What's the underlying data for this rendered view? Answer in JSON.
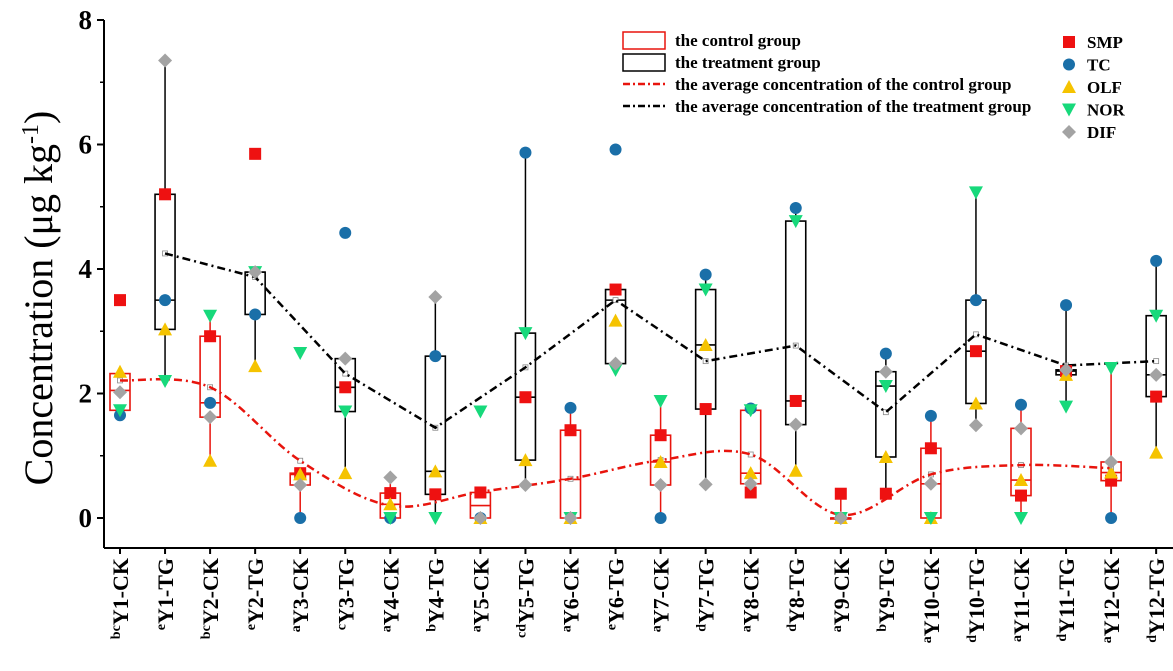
{
  "chart_data": {
    "type": "box",
    "ylabel_main": "Concentration (μg kg",
    "ylabel_sup": "-1",
    "ylabel_tail": ")",
    "ylim": [
      -0.3,
      8
    ],
    "yticks": [
      "0",
      "2",
      "4",
      "6",
      "8"
    ],
    "ytick_values": [
      0,
      2,
      4,
      6,
      8
    ],
    "categories": [
      {
        "sup": "bc",
        "label": "Y1-CK"
      },
      {
        "sup": "e",
        "label": "Y1-TG"
      },
      {
        "sup": "bc",
        "label": "Y2-CK"
      },
      {
        "sup": "e",
        "label": "Y2-TG"
      },
      {
        "sup": "a",
        "label": "Y3-CK"
      },
      {
        "sup": "c",
        "label": "Y3-TG"
      },
      {
        "sup": "a",
        "label": "Y4-CK"
      },
      {
        "sup": "b",
        "label": "Y4-TG"
      },
      {
        "sup": "a",
        "label": "Y5-CK"
      },
      {
        "sup": "cd",
        "label": "Y5-TG"
      },
      {
        "sup": "a",
        "label": "Y6-CK"
      },
      {
        "sup": "e",
        "label": "Y6-TG"
      },
      {
        "sup": "a",
        "label": "Y7-CK"
      },
      {
        "sup": "d",
        "label": "Y7-TG"
      },
      {
        "sup": "a",
        "label": "Y8-CK"
      },
      {
        "sup": "d",
        "label": "Y8-TG"
      },
      {
        "sup": "a",
        "label": "Y9-CK"
      },
      {
        "sup": "b",
        "label": "Y9-TG"
      },
      {
        "sup": "a",
        "label": "Y10-CK"
      },
      {
        "sup": "d",
        "label": "Y10-TG"
      },
      {
        "sup": "a",
        "label": "Y11-CK"
      },
      {
        "sup": "d",
        "label": "Y11-TG"
      },
      {
        "sup": "a",
        "label": "Y12-CK"
      },
      {
        "sup": "d",
        "label": "Y12-TG"
      }
    ],
    "boxes": [
      {
        "q1": 1.73,
        "q3": 2.32,
        "median": 2.05,
        "mean": 2.21,
        "wlow": 1.65,
        "whigh": 2.35
      },
      {
        "q1": 3.03,
        "q3": 5.2,
        "median": 3.5,
        "mean": 4.25,
        "wlow": 2.2,
        "whigh": 7.35
      },
      {
        "q1": 1.62,
        "q3": 2.92,
        "median": 1.85,
        "mean": 2.1,
        "wlow": 0.92,
        "whigh": 3.25
      },
      {
        "q1": 3.27,
        "q3": 3.95,
        "median": 3.95,
        "mean": 3.87,
        "wlow": 2.44,
        "whigh": 3.95
      },
      {
        "q1": 0.53,
        "q3": 0.72,
        "median": 0.7,
        "mean": 0.92,
        "wlow": 0.0,
        "whigh": 0.72
      },
      {
        "q1": 1.71,
        "q3": 2.56,
        "median": 2.1,
        "mean": 2.32,
        "wlow": 0.72,
        "whigh": 2.56
      },
      {
        "q1": 0.0,
        "q3": 0.4,
        "median": 0.22,
        "mean": 0.2,
        "wlow": 0.0,
        "whigh": 0.65
      },
      {
        "q1": 0.38,
        "q3": 2.6,
        "median": 0.75,
        "mean": 1.45,
        "wlow": 0.0,
        "whigh": 3.55
      },
      {
        "q1": 0.0,
        "q3": 0.41,
        "median": 0.2,
        "mean": 0.42,
        "wlow": 0.0,
        "whigh": 0.41
      },
      {
        "q1": 0.93,
        "q3": 2.97,
        "median": 1.94,
        "mean": 2.42,
        "wlow": 0.53,
        "whigh": 5.87
      },
      {
        "q1": 0.0,
        "q3": 1.41,
        "median": 0.62,
        "mean": 0.63,
        "wlow": 0.0,
        "whigh": 1.77
      },
      {
        "q1": 2.48,
        "q3": 3.67,
        "median": 3.5,
        "mean": 3.5,
        "wlow": 2.38,
        "whigh": 3.67
      },
      {
        "q1": 0.53,
        "q3": 1.33,
        "median": 0.9,
        "mean": 0.93,
        "wlow": 0.0,
        "whigh": 1.88
      },
      {
        "q1": 1.75,
        "q3": 3.67,
        "median": 2.78,
        "mean": 2.52,
        "wlow": 0.54,
        "whigh": 3.91
      },
      {
        "q1": 0.55,
        "q3": 1.73,
        "median": 0.72,
        "mean": 1.02,
        "wlow": 0.41,
        "whigh": 1.76
      },
      {
        "q1": 1.5,
        "q3": 4.77,
        "median": 1.88,
        "mean": 2.77,
        "wlow": 0.76,
        "whigh": 4.98
      },
      {
        "q1": 0.0,
        "q3": 0.0,
        "median": 0.0,
        "mean": 0.05,
        "wlow": 0.0,
        "whigh": 0.39
      },
      {
        "q1": 0.98,
        "q3": 2.35,
        "median": 2.12,
        "mean": 1.7,
        "wlow": 0.39,
        "whigh": 2.64
      },
      {
        "q1": 0.0,
        "q3": 1.12,
        "median": 0.55,
        "mean": 0.7,
        "wlow": 0.0,
        "whigh": 1.64
      },
      {
        "q1": 1.84,
        "q3": 3.5,
        "median": 2.68,
        "mean": 2.95,
        "wlow": 1.49,
        "whigh": 5.23
      },
      {
        "q1": 0.36,
        "q3": 1.44,
        "median": 0.61,
        "mean": 0.85,
        "wlow": 0.0,
        "whigh": 1.82
      },
      {
        "q1": 2.3,
        "q3": 2.38,
        "median": 2.36,
        "mean": 2.45,
        "wlow": 1.79,
        "whigh": 3.42
      },
      {
        "q1": 0.6,
        "q3": 0.9,
        "median": 0.73,
        "mean": 0.8,
        "wlow": 0.0,
        "whigh": 2.41
      },
      {
        "q1": 1.95,
        "q3": 3.25,
        "median": 2.3,
        "mean": 2.52,
        "wlow": 1.05,
        "whigh": 4.13
      }
    ],
    "box_group_colors": {
      "CK": "#e8140d",
      "TG": "#000000"
    },
    "points": [
      {
        "SMP": 3.5,
        "TC": 1.65,
        "OLF": 2.35,
        "NOR": 1.73,
        "DIF": 2.02
      },
      {
        "SMP": 5.2,
        "TC": 3.5,
        "OLF": 3.03,
        "NOR": 2.2,
        "DIF": 7.35
      },
      {
        "SMP": 2.92,
        "TC": 1.85,
        "OLF": 0.92,
        "NOR": 3.25,
        "DIF": 1.62
      },
      {
        "SMP": 5.85,
        "TC": 3.27,
        "OLF": 2.44,
        "NOR": 3.95,
        "DIF": 3.95
      },
      {
        "SMP": 0.72,
        "TC": 0.0,
        "OLF": 0.7,
        "NOR": 2.65,
        "DIF": 0.53
      },
      {
        "SMP": 2.1,
        "TC": 4.58,
        "OLF": 0.72,
        "NOR": 1.71,
        "DIF": 2.56
      },
      {
        "SMP": 0.4,
        "TC": 0.0,
        "OLF": 0.22,
        "NOR": 0.0,
        "DIF": 0.65
      },
      {
        "SMP": 0.38,
        "TC": 2.6,
        "OLF": 0.75,
        "NOR": 0.0,
        "DIF": 3.55
      },
      {
        "SMP": 0.41,
        "TC": 0.0,
        "OLF": 0.0,
        "NOR": 1.71,
        "DIF": 0.0
      },
      {
        "SMP": 1.94,
        "TC": 5.87,
        "OLF": 0.93,
        "NOR": 2.97,
        "DIF": 0.53
      },
      {
        "SMP": 1.41,
        "TC": 1.77,
        "OLF": 0.0,
        "NOR": 0.0,
        "DIF": 0.0
      },
      {
        "SMP": 3.67,
        "TC": 5.92,
        "OLF": 3.17,
        "NOR": 2.38,
        "DIF": 2.48
      },
      {
        "SMP": 1.33,
        "TC": 0.0,
        "OLF": 0.9,
        "NOR": 1.88,
        "DIF": 0.53
      },
      {
        "SMP": 1.75,
        "TC": 3.91,
        "OLF": 2.78,
        "NOR": 3.67,
        "DIF": 0.54
      },
      {
        "SMP": 0.41,
        "TC": 1.76,
        "OLF": 0.72,
        "NOR": 1.73,
        "DIF": 0.55
      },
      {
        "SMP": 1.88,
        "TC": 4.98,
        "OLF": 0.76,
        "NOR": 4.77,
        "DIF": 1.5
      },
      {
        "SMP": 0.39,
        "TC": 0.0,
        "OLF": 0.0,
        "NOR": 0.0,
        "DIF": 0.0
      },
      {
        "SMP": 0.39,
        "TC": 2.64,
        "OLF": 0.98,
        "NOR": 2.12,
        "DIF": 2.35
      },
      {
        "SMP": 1.12,
        "TC": 1.64,
        "OLF": 0.0,
        "NOR": 0.0,
        "DIF": 0.55
      },
      {
        "SMP": 2.68,
        "TC": 3.5,
        "OLF": 1.84,
        "NOR": 5.23,
        "DIF": 1.49
      },
      {
        "SMP": 0.36,
        "TC": 1.82,
        "OLF": 0.61,
        "NOR": 0.0,
        "DIF": 1.44
      },
      {
        "SMP": 2.36,
        "TC": 3.42,
        "OLF": 2.3,
        "NOR": 1.79,
        "DIF": 2.38
      },
      {
        "SMP": 0.6,
        "TC": 0.0,
        "OLF": 0.73,
        "NOR": 2.41,
        "DIF": 0.9
      },
      {
        "SMP": 1.95,
        "TC": 4.13,
        "OLF": 1.05,
        "NOR": 3.25,
        "DIF": 2.3
      }
    ],
    "series": [
      {
        "name": "SMP",
        "marker": "square",
        "color": "#ee1111"
      },
      {
        "name": "TC",
        "marker": "circle",
        "color": "#1a6fa8"
      },
      {
        "name": "OLF",
        "marker": "triangle-up",
        "color": "#f5c300"
      },
      {
        "name": "NOR",
        "marker": "triangle-down",
        "color": "#17d97b"
      },
      {
        "name": "DIF",
        "marker": "diamond",
        "color": "#a3a3a3"
      }
    ],
    "legend_boxes": [
      {
        "label": "the control group",
        "color": "#e8140d",
        "kind": "box"
      },
      {
        "label": "the treatment group",
        "color": "#000000",
        "kind": "box"
      },
      {
        "label": "the average concentration of the control group",
        "color": "#e8140d",
        "kind": "dashdot"
      },
      {
        "label": "the average concentration of the treatment group",
        "color": "#000000",
        "kind": "dashdot"
      }
    ]
  }
}
